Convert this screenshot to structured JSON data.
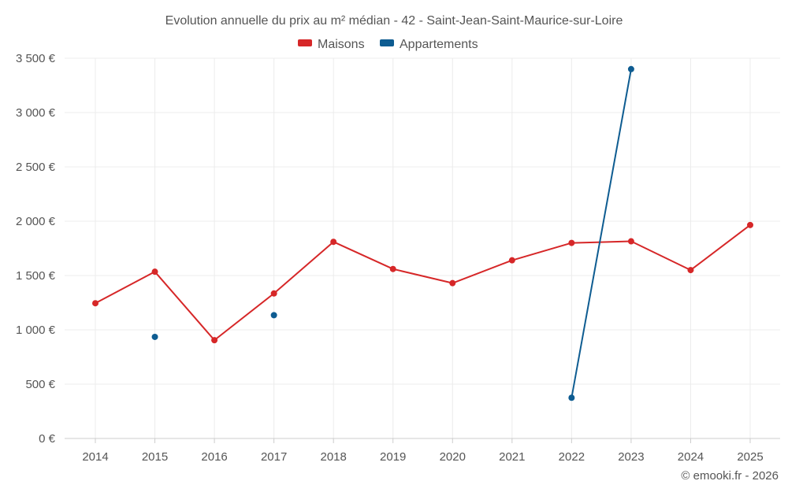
{
  "chart_data": {
    "type": "line",
    "title": "Evolution annuelle du prix au m² médian - 42 - Saint-Jean-Saint-Maurice-sur-Loire",
    "categories": [
      "2014",
      "2015",
      "2016",
      "2017",
      "2018",
      "2019",
      "2020",
      "2021",
      "2022",
      "2023",
      "2024",
      "2025"
    ],
    "ylim": [
      0,
      3500
    ],
    "yticks": [
      0,
      500,
      1000,
      1500,
      2000,
      2500,
      3000,
      3500
    ],
    "ytick_labels": [
      "0 €",
      "500 €",
      "1 000 €",
      "1 500 €",
      "2 000 €",
      "2 500 €",
      "3 000 €",
      "3 500 €"
    ],
    "legend_position": "top-center",
    "series": [
      {
        "name": "Maisons",
        "color": "#d62728",
        "values": [
          1245,
          1535,
          905,
          1335,
          1810,
          1560,
          1430,
          1640,
          1800,
          1815,
          1550,
          1965
        ]
      },
      {
        "name": "Appartements",
        "color": "#0e5c91",
        "values": [
          null,
          935,
          null,
          1135,
          null,
          null,
          null,
          null,
          375,
          3400,
          null,
          null
        ]
      }
    ]
  },
  "credit": "© emooki.fr - 2026"
}
